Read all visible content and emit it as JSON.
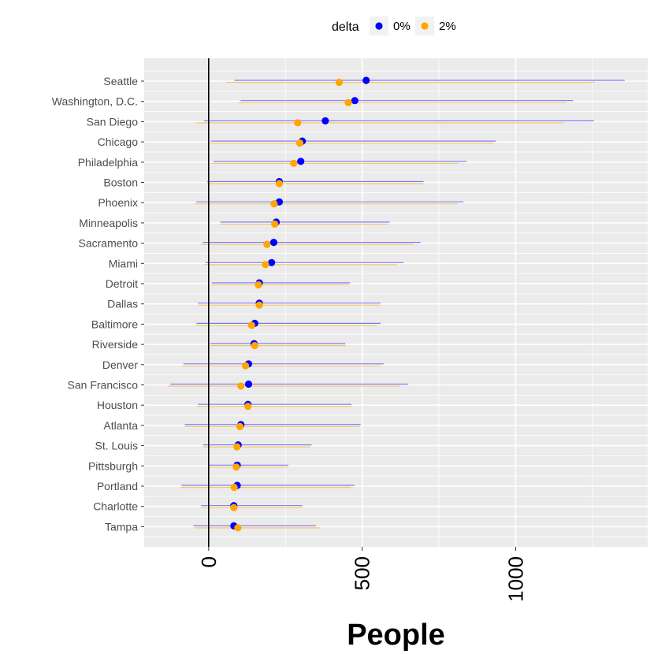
{
  "chart_data": {
    "type": "dot-range",
    "title": "",
    "xlabel": "People",
    "ylabel": "",
    "xlim": [
      -210,
      1430
    ],
    "x_ticks": [
      0,
      500,
      1000
    ],
    "x_tick_labels": [
      "0",
      "500",
      "1000"
    ],
    "legend": {
      "title": "delta",
      "position": "top",
      "entries": [
        {
          "label": "0%",
          "color": "#0000ff"
        },
        {
          "label": "2%",
          "color": "#ffa500"
        }
      ]
    },
    "reference_line": {
      "x": 0,
      "color": "#000000"
    },
    "categories": [
      "Seattle",
      "Washington, D.C.",
      "San Diego",
      "Chicago",
      "Philadelphia",
      "Boston",
      "Phoenix",
      "Minneapolis",
      "Sacramento",
      "Miami",
      "Detroit",
      "Dallas",
      "Baltimore",
      "Riverside",
      "Denver",
      "San Francisco",
      "Houston",
      "Atlanta",
      "St. Louis",
      "Pittsburgh",
      "Portland",
      "Charlotte",
      "Tampa"
    ],
    "series": [
      {
        "name": "0%",
        "color": "#0000ff",
        "estimate": [
          513,
          476,
          380,
          305,
          300,
          230,
          230,
          220,
          212,
          205,
          165,
          165,
          150,
          148,
          130,
          130,
          128,
          105,
          96,
          93,
          93,
          82,
          82
        ],
        "low": [
          84,
          104,
          -15,
          7,
          15,
          -5,
          -40,
          38,
          -20,
          -10,
          10,
          -35,
          -40,
          5,
          -82,
          -125,
          -35,
          -78,
          -18,
          0,
          -88,
          -25,
          -50
        ],
        "high": [
          1355,
          1187,
          1255,
          935,
          840,
          700,
          830,
          590,
          690,
          635,
          460,
          560,
          560,
          445,
          570,
          650,
          465,
          495,
          335,
          260,
          475,
          305,
          350
        ]
      },
      {
        "name": "2%",
        "color": "#ffa500",
        "estimate": [
          425,
          455,
          290,
          297,
          277,
          230,
          213,
          215,
          190,
          185,
          162,
          165,
          140,
          150,
          120,
          105,
          128,
          102,
          92,
          90,
          83,
          82,
          95
        ]
      }
    ]
  }
}
